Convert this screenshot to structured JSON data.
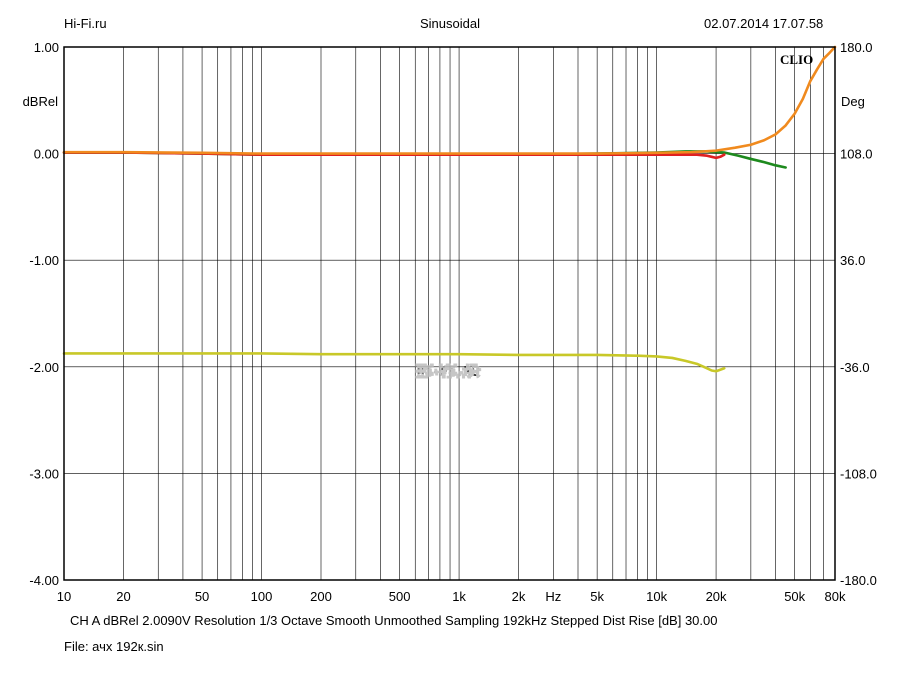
{
  "header": {
    "left": "Hi-Fi.ru",
    "center": "Sinusoidal",
    "right": "02.07.2014 17.07.58"
  },
  "footer": {
    "settings": "CH A   dBRel 2.0090V  Resolution 1/3 Octave   Smooth Unmoothed   Sampling 192kHz   Stepped     Dist Rise [dB] 30.00",
    "file": "File: ачх 192к.sin"
  },
  "watermark": "HI-FI.RU",
  "chart_data": {
    "type": "line",
    "title": "Sinusoidal",
    "brand": "CLIO",
    "xscale": "log",
    "xlim": [
      10,
      80000
    ],
    "x_tick_labels": [
      {
        "value": 10,
        "label": "10"
      },
      {
        "value": 20,
        "label": "20"
      },
      {
        "value": 50,
        "label": "50"
      },
      {
        "value": 100,
        "label": "100"
      },
      {
        "value": 200,
        "label": "200"
      },
      {
        "value": 500,
        "label": "500"
      },
      {
        "value": 1000,
        "label": "1k"
      },
      {
        "value": 2000,
        "label": "2k"
      },
      {
        "value": 3000,
        "label": "Hz"
      },
      {
        "value": 5000,
        "label": "5k"
      },
      {
        "value": 10000,
        "label": "10k"
      },
      {
        "value": 20000,
        "label": "20k"
      },
      {
        "value": 50000,
        "label": "50k"
      },
      {
        "value": 80000,
        "label": "80k"
      }
    ],
    "ylabel_left": "dBRel",
    "ylim_left": [
      -4.0,
      1.0
    ],
    "y_ticks_left": [
      "1.00",
      "0.00",
      "-1.00",
      "-2.00",
      "-3.00",
      "-4.00"
    ],
    "ylabel_right": "Deg",
    "ylim_right": [
      -180,
      180
    ],
    "y_ticks_right": [
      "180.0",
      "108.0",
      "36.0",
      "-36.0",
      "-108.0",
      "-180.0"
    ],
    "grid": true,
    "colors": {
      "grid": "#000000",
      "green": "#1e8a1e",
      "red": "#e02020",
      "orange": "#f08a1e",
      "yellow": "#c8c828"
    },
    "series": [
      {
        "color": "green",
        "axis": "left",
        "x": [
          10,
          20,
          50,
          100,
          200,
          500,
          1000,
          2000,
          5000,
          10000,
          14000,
          18000,
          22000,
          26000,
          30000,
          35000,
          40000,
          45000
        ],
        "y": [
          0.01,
          0.01,
          0.0,
          -0.01,
          -0.01,
          -0.01,
          -0.01,
          -0.01,
          0.0,
          0.01,
          0.02,
          0.02,
          0.01,
          -0.02,
          -0.05,
          -0.08,
          -0.11,
          -0.13
        ]
      },
      {
        "color": "red",
        "axis": "left",
        "x": [
          10,
          20,
          50,
          100,
          200,
          500,
          1000,
          2000,
          5000,
          10000,
          14000,
          16000,
          18000,
          19000,
          20000,
          21000,
          22000
        ],
        "y": [
          0.01,
          0.01,
          0.0,
          -0.01,
          -0.01,
          -0.01,
          -0.01,
          -0.01,
          -0.01,
          -0.01,
          -0.01,
          -0.01,
          -0.02,
          -0.03,
          -0.04,
          -0.03,
          -0.01
        ]
      },
      {
        "color": "orange",
        "axis": "right",
        "x": [
          10,
          20,
          50,
          100,
          200,
          500,
          1000,
          2000,
          5000,
          10000,
          15000,
          20000,
          25000,
          30000,
          35000,
          40000,
          45000,
          50000,
          55000,
          60000,
          65000,
          70000,
          75000,
          80000
        ],
        "y": [
          109,
          109,
          108.5,
          108,
          108,
          108,
          108,
          108,
          108,
          108.5,
          109,
          110,
          112,
          114,
          117,
          121,
          127,
          135,
          145,
          157,
          165,
          172,
          176,
          180
        ]
      },
      {
        "color": "yellow",
        "axis": "right",
        "x": [
          10,
          20,
          50,
          100,
          200,
          500,
          1000,
          2000,
          5000,
          8000,
          10000,
          12000,
          14000,
          16000,
          18000,
          19000,
          20000,
          21000,
          22000
        ],
        "y": [
          -27,
          -27,
          -27,
          -27,
          -27.5,
          -27.5,
          -27.5,
          -28,
          -28,
          -28.5,
          -29,
          -30,
          -32,
          -34,
          -37,
          -38.5,
          -39,
          -38,
          -37
        ]
      }
    ]
  }
}
